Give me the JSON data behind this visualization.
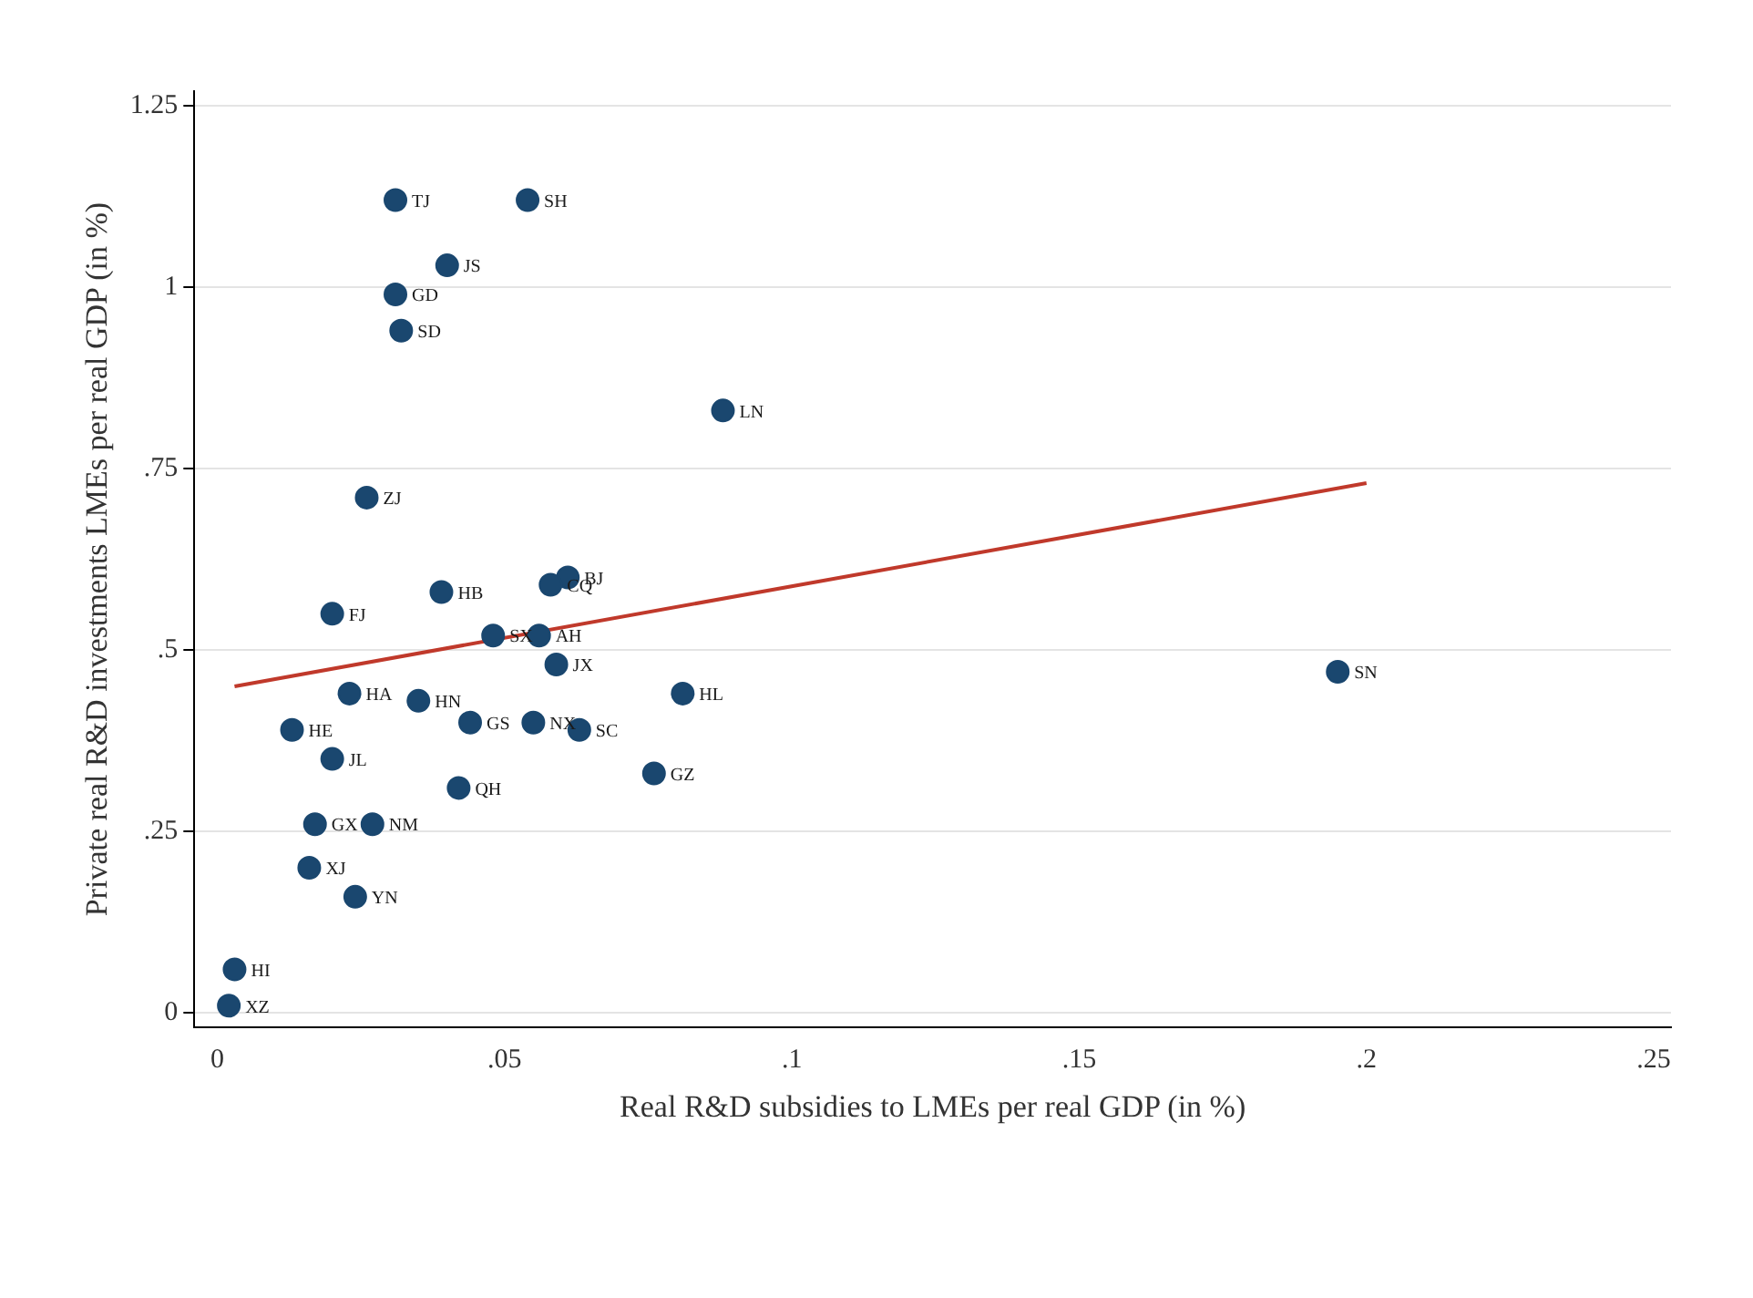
{
  "chart_data": {
    "type": "scatter",
    "xlabel": "Real R&D subsidies to LMEs per real GDP (in %)",
    "ylabel": "Private real R&D investments LMEs per real GDP (in %)",
    "xlim": [
      -0.004,
      0.253
    ],
    "ylim": [
      -0.02,
      1.27
    ],
    "xticks": [
      0,
      {
        "value": 0.05,
        "label": ".05"
      },
      {
        "value": 0.1,
        "label": ".1"
      },
      {
        "value": 0.15,
        "label": ".15"
      },
      {
        "value": 0.2,
        "label": ".2"
      },
      {
        "value": 0.25,
        "label": ".25"
      }
    ],
    "yticks": [
      0,
      {
        "value": 0.25,
        "label": ".25"
      },
      {
        "value": 0.5,
        "label": ".5"
      },
      {
        "value": 0.75,
        "label": ".75"
      },
      1,
      1.25
    ],
    "grid": "y",
    "legend": false,
    "marker": "circle",
    "series": [
      {
        "color": "#1a476f",
        "x": [
          0.031,
          0.054,
          0.04,
          0.031,
          0.032,
          0.088,
          0.026,
          0.02,
          0.039,
          0.061,
          0.058,
          0.048,
          0.056,
          0.059,
          0.023,
          0.035,
          0.044,
          0.055,
          0.063,
          0.081,
          0.013,
          0.02,
          0.042,
          0.076,
          0.017,
          0.027,
          0.016,
          0.024,
          0.003,
          0.002,
          0.195
        ],
        "values": [
          1.12,
          1.12,
          1.03,
          0.99,
          0.94,
          0.83,
          0.71,
          0.55,
          0.58,
          0.6,
          0.59,
          0.52,
          0.52,
          0.48,
          0.44,
          0.43,
          0.4,
          0.4,
          0.39,
          0.44,
          0.39,
          0.35,
          0.31,
          0.33,
          0.26,
          0.26,
          0.2,
          0.16,
          0.06,
          0.01,
          0.47
        ],
        "value_labels": [
          "TJ",
          "SH",
          "JS",
          "GD",
          "SD",
          "LN",
          "ZJ",
          "FJ",
          "HB",
          "BJ",
          "CQ",
          "SX",
          "AH",
          "JX",
          "HA",
          "HN",
          "GS",
          "NX",
          "SC",
          "HL",
          "HE",
          "JL",
          "QH",
          "GZ",
          "GX",
          "NM",
          "XJ",
          "YN",
          "HI",
          "XZ",
          "SN"
        ]
      },
      {
        "type": "line",
        "color": "#c0392b",
        "x": [
          0.003,
          0.2
        ],
        "values": [
          0.45,
          0.73
        ],
        "marker": "none"
      }
    ]
  }
}
